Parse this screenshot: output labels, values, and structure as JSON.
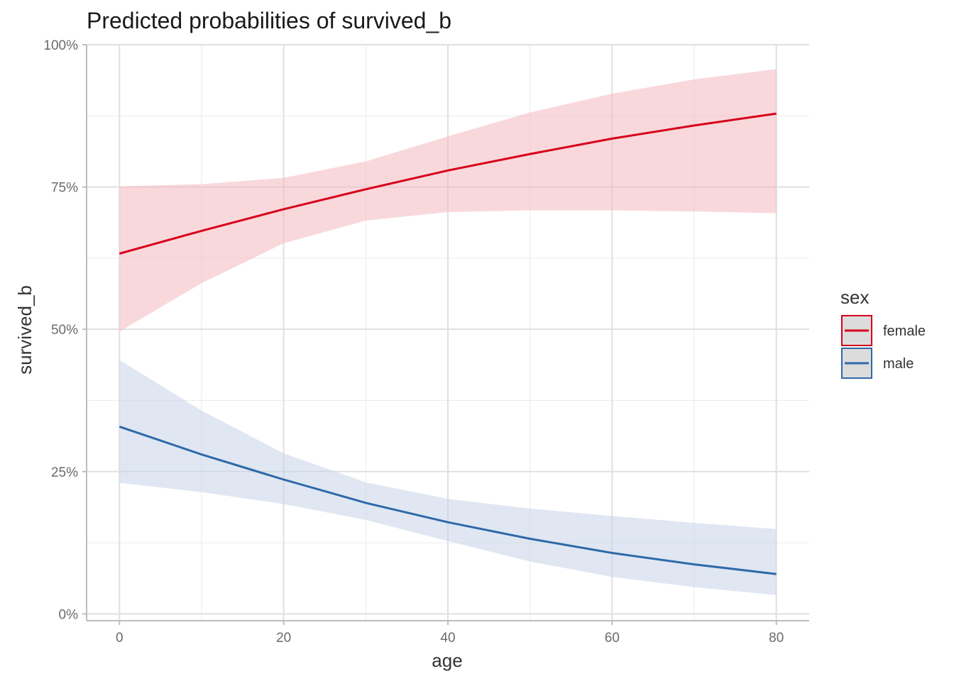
{
  "chart_data": {
    "type": "line",
    "title": "Predicted probabilities of survived_b",
    "xlabel": "age",
    "ylabel": "survived_b",
    "xlim": [
      -4,
      84
    ],
    "ylim": [
      -0.012,
      1.0
    ],
    "x_ticks": [
      0,
      20,
      40,
      60,
      80
    ],
    "x_tick_labels": [
      "0",
      "20",
      "40",
      "60",
      "80"
    ],
    "x_minor": [
      10,
      30,
      50,
      70
    ],
    "y_ticks": [
      0,
      0.25,
      0.5,
      0.75,
      1.0
    ],
    "y_tick_labels": [
      "0%",
      "25%",
      "50%",
      "75%",
      "100%"
    ],
    "y_minor": [
      0.125,
      0.375,
      0.625,
      0.875
    ],
    "grid": true,
    "legend": {
      "title": "sex",
      "position": "right"
    },
    "x": [
      0,
      10,
      20,
      30,
      40,
      50,
      60,
      70,
      80
    ],
    "series": [
      {
        "name": "female",
        "color": "#d7001a",
        "band_color": "#f4b8c0",
        "values": [
          0.633,
          0.673,
          0.711,
          0.746,
          0.779,
          0.808,
          0.835,
          0.858,
          0.879
        ],
        "lower": [
          0.496,
          0.581,
          0.651,
          0.691,
          0.706,
          0.709,
          0.709,
          0.707,
          0.704
        ],
        "upper": [
          0.751,
          0.755,
          0.766,
          0.795,
          0.839,
          0.881,
          0.914,
          0.939,
          0.957
        ]
      },
      {
        "name": "male",
        "color": "#2e69a8",
        "band_color": "#c6d4e8",
        "values": [
          0.329,
          0.28,
          0.236,
          0.195,
          0.161,
          0.132,
          0.107,
          0.087,
          0.07
        ],
        "lower": [
          0.23,
          0.214,
          0.193,
          0.165,
          0.128,
          0.092,
          0.065,
          0.047,
          0.033
        ],
        "upper": [
          0.446,
          0.357,
          0.282,
          0.231,
          0.202,
          0.185,
          0.172,
          0.16,
          0.149
        ]
      }
    ]
  }
}
